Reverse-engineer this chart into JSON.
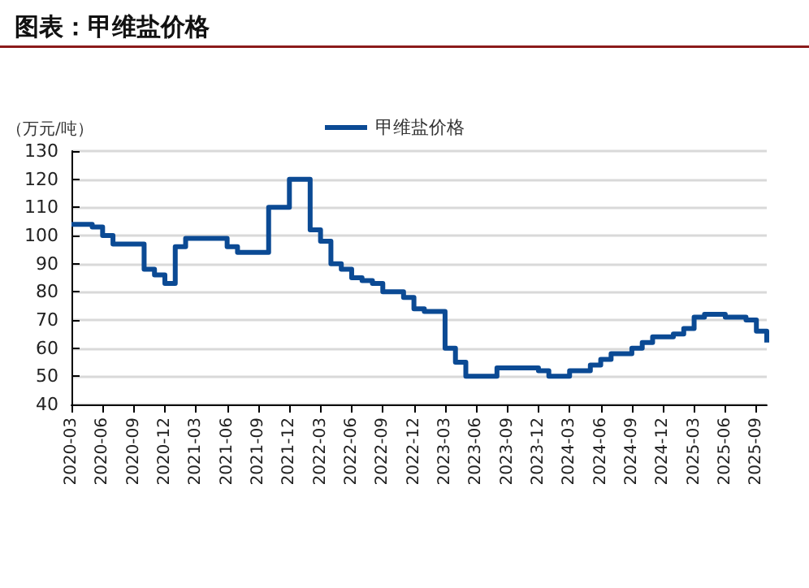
{
  "chart_data": {
    "type": "step",
    "title": "图表：甲维盐价格",
    "ylabel": "（万元/吨）",
    "categories": [
      "2020-03",
      null,
      null,
      "2020-06",
      null,
      null,
      "2020-09",
      null,
      null,
      "2020-12",
      null,
      null,
      "2021-03",
      null,
      null,
      "2021-06",
      null,
      null,
      "2021-09",
      null,
      null,
      "2021-12",
      null,
      null,
      "2022-03",
      null,
      null,
      "2022-06",
      null,
      null,
      "2022-09",
      null,
      null,
      "2022-12",
      null,
      null,
      "2023-03",
      null,
      null,
      "2023-06",
      null,
      null,
      "2023-09",
      null,
      null,
      "2023-12",
      null,
      null,
      "2024-03",
      null,
      null,
      "2024-06",
      null,
      null,
      "2024-09",
      null,
      null,
      "2024-12",
      null,
      null,
      "2025-03",
      null,
      null,
      "2025-06",
      null,
      null,
      "2025-09",
      null
    ],
    "series": [
      {
        "name": "甲维盐价格",
        "color": "#0b4a94",
        "values": [
          104,
          104,
          103,
          100,
          97,
          97,
          97,
          88,
          86,
          83,
          96,
          99,
          99,
          99,
          99,
          96,
          94,
          94,
          94,
          110,
          110,
          120,
          120,
          102,
          98,
          90,
          88,
          85,
          84,
          83,
          80,
          80,
          78,
          74,
          73,
          73,
          60,
          55,
          50,
          50,
          50,
          53,
          53,
          53,
          53,
          52,
          50,
          50,
          52,
          52,
          54,
          56,
          58,
          58,
          60,
          62,
          64,
          64,
          65,
          67,
          71,
          72,
          72,
          71,
          71,
          70,
          66,
          62
        ]
      }
    ],
    "ylim": [
      40,
      130
    ],
    "yticks": [
      40,
      50,
      60,
      70,
      80,
      90,
      100,
      110,
      120,
      130
    ],
    "grid": "y",
    "legend": "top",
    "marker": "none",
    "line_style": "solid"
  }
}
